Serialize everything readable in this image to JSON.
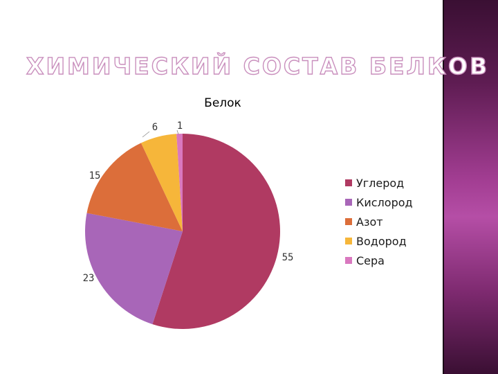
{
  "slide": {
    "title": "ХИМИЧЕСКИЙ СОСТАВ БЕЛКОВ"
  },
  "chart_data": {
    "type": "pie",
    "title": "Белок",
    "categories": [
      "Углерод",
      "Кислород",
      "Азот",
      "Водород",
      "Сера"
    ],
    "values": [
      55,
      23,
      15,
      6,
      1
    ],
    "data_labels": [
      "55",
      "23",
      "15",
      "6",
      "1"
    ],
    "colors": [
      "#b03a62",
      "#a866b8",
      "#dc6e3a",
      "#f6b63a",
      "#d978bf"
    ],
    "legend_position": "right",
    "start_angle_deg": 0,
    "direction": "clockwise"
  }
}
